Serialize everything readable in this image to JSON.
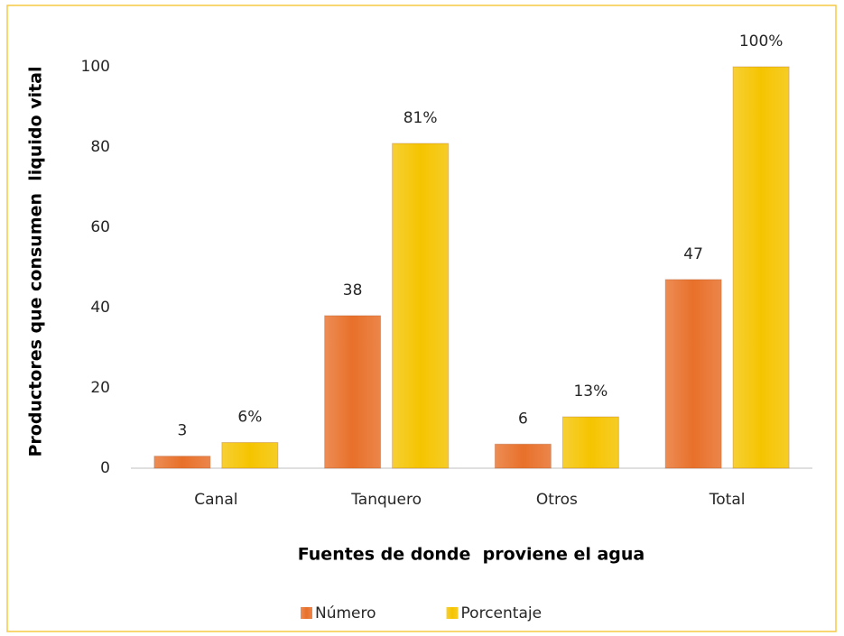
{
  "chart_data": {
    "type": "bar",
    "categories": [
      "Canal",
      "Tanquero",
      "Otros",
      "Total"
    ],
    "series": [
      {
        "name": "Número",
        "color": "#e8702a",
        "values": [
          3,
          38,
          6,
          47
        ]
      },
      {
        "name": "Porcentaje",
        "color": "#f5c400",
        "values": [
          6.4,
          80.9,
          12.8,
          100
        ],
        "value_labels": [
          "6%",
          "81%",
          "13%",
          "100%"
        ]
      }
    ],
    "ylim": [
      0,
      100
    ],
    "yticks": [
      0,
      20,
      40,
      60,
      80,
      100
    ],
    "grid": false,
    "xlabel": "Fuentes de donde  proviene el agua",
    "ylabel": "Productores que consumen  liquido vital",
    "legend": "bottom"
  }
}
